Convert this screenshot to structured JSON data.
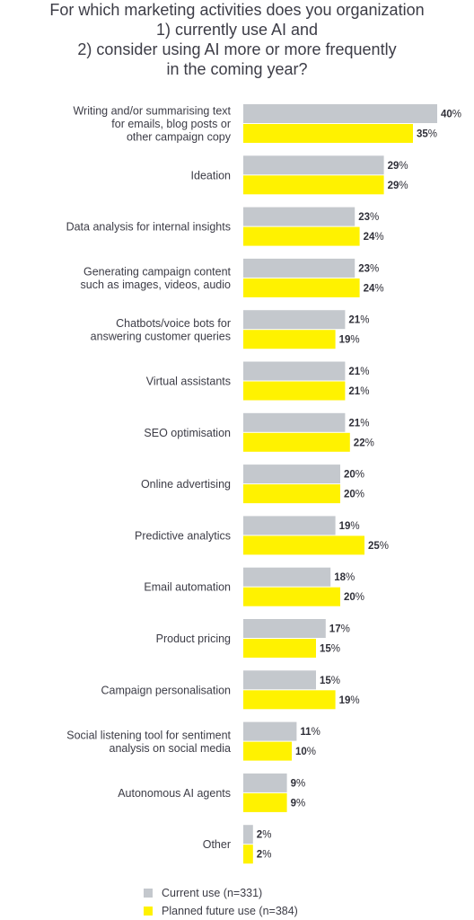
{
  "chart_data": {
    "type": "bar",
    "orientation": "horizontal",
    "title_lines": [
      "For which marketing activities does you organization",
      "1) currently use AI and",
      "2) consider using AI more or more frequently",
      "in the coming year?"
    ],
    "categories": [
      [
        "Writing and/or summarising text",
        "for emails, blog posts or",
        "other campaign copy"
      ],
      [
        "Ideation"
      ],
      [
        "Data analysis for internal insights"
      ],
      [
        "Generating campaign content",
        "such as images, videos, audio"
      ],
      [
        "Chatbots/voice bots for",
        "answering customer queries"
      ],
      [
        "Virtual assistants"
      ],
      [
        "SEO optimisation"
      ],
      [
        "Online advertising"
      ],
      [
        "Predictive analytics"
      ],
      [
        "Email automation"
      ],
      [
        "Product pricing"
      ],
      [
        "Campaign personalisation"
      ],
      [
        "Social listening tool for sentiment",
        "analysis on social media"
      ],
      [
        "Autonomous AI agents"
      ],
      [
        "Other"
      ]
    ],
    "series": [
      {
        "name": "Current use (n=331)",
        "color": "#c4c8cd",
        "values": [
          40,
          29,
          23,
          23,
          21,
          21,
          21,
          20,
          19,
          18,
          17,
          15,
          11,
          9,
          2
        ]
      },
      {
        "name": "Planned future use (n=384)",
        "color": "#fff200",
        "values": [
          35,
          29,
          24,
          24,
          19,
          21,
          22,
          20,
          25,
          20,
          15,
          19,
          10,
          9,
          2
        ]
      }
    ],
    "unit": "%",
    "xlim": [
      0,
      40
    ],
    "grid": false,
    "legend_position": "bottom"
  }
}
